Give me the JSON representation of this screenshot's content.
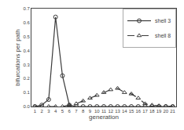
{
  "chart_data": {
    "type": "line",
    "xlabel": "generation",
    "ylabel": "bifurcations per path",
    "x": [
      1,
      2,
      3,
      4,
      5,
      6,
      7,
      8,
      9,
      10,
      11,
      12,
      13,
      14,
      15,
      16,
      17,
      18,
      19,
      20,
      21
    ],
    "series": [
      {
        "name": "shell 3",
        "color": "#3a3a3a",
        "marker": "circle",
        "line_style": "solid",
        "values": [
          0.0,
          0.01,
          0.05,
          0.64,
          0.22,
          0.01,
          0.0,
          0.0,
          0.0,
          0.0,
          0.0,
          0.0,
          0.0,
          0.0,
          0.0,
          0.0,
          0.0,
          0.0,
          0.0,
          0.0,
          0.0
        ]
      },
      {
        "name": "shell 8",
        "color": "#3a3a3a",
        "marker": "triangle",
        "line_style": "dashed",
        "values": [
          0.0,
          0.0,
          0.0,
          0.0,
          0.0,
          0.01,
          0.02,
          0.04,
          0.06,
          0.08,
          0.1,
          0.12,
          0.13,
          0.1,
          0.09,
          0.06,
          0.02,
          0.01,
          0.005,
          0.002,
          0.001
        ]
      }
    ],
    "xlim": [
      0.5,
      21.5
    ],
    "xticks": [
      1,
      2,
      3,
      4,
      5,
      6,
      7,
      8,
      9,
      10,
      11,
      12,
      13,
      14,
      15,
      16,
      17,
      18,
      19,
      20,
      21
    ],
    "ylim": [
      0.0,
      0.7
    ],
    "yticks": [
      {
        "value": 0.0,
        "label": "0.0"
      },
      0.1,
      0.2,
      0.3,
      0.4,
      0.5,
      0.6,
      0.7
    ],
    "grid": false,
    "legend": "upper right"
  }
}
